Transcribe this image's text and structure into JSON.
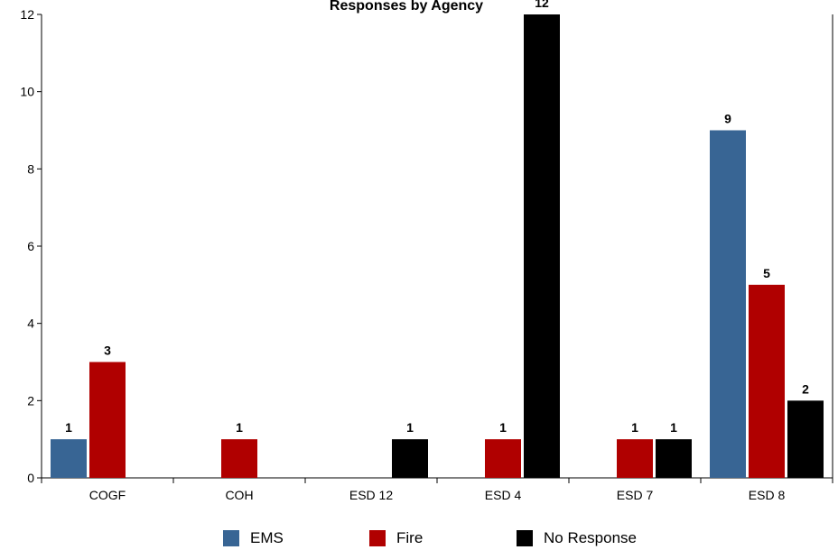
{
  "chart_data": {
    "type": "bar",
    "title": "Responses by Agency",
    "categories": [
      "COGF",
      "COH",
      "ESD 12",
      "ESD 4",
      "ESD 7",
      "ESD 8"
    ],
    "series": [
      {
        "name": "EMS",
        "color": "#386594",
        "values": [
          1,
          null,
          null,
          null,
          null,
          9
        ]
      },
      {
        "name": "Fire",
        "color": "#b00000",
        "values": [
          3,
          1,
          null,
          1,
          1,
          5
        ]
      },
      {
        "name": "No Response",
        "color": "#000000",
        "values": [
          null,
          null,
          1,
          12,
          1,
          2
        ]
      }
    ],
    "ylim": [
      0,
      12
    ],
    "yticks": [
      0,
      2,
      4,
      6,
      8,
      10,
      12
    ],
    "grid": false,
    "legend": "bottom"
  }
}
